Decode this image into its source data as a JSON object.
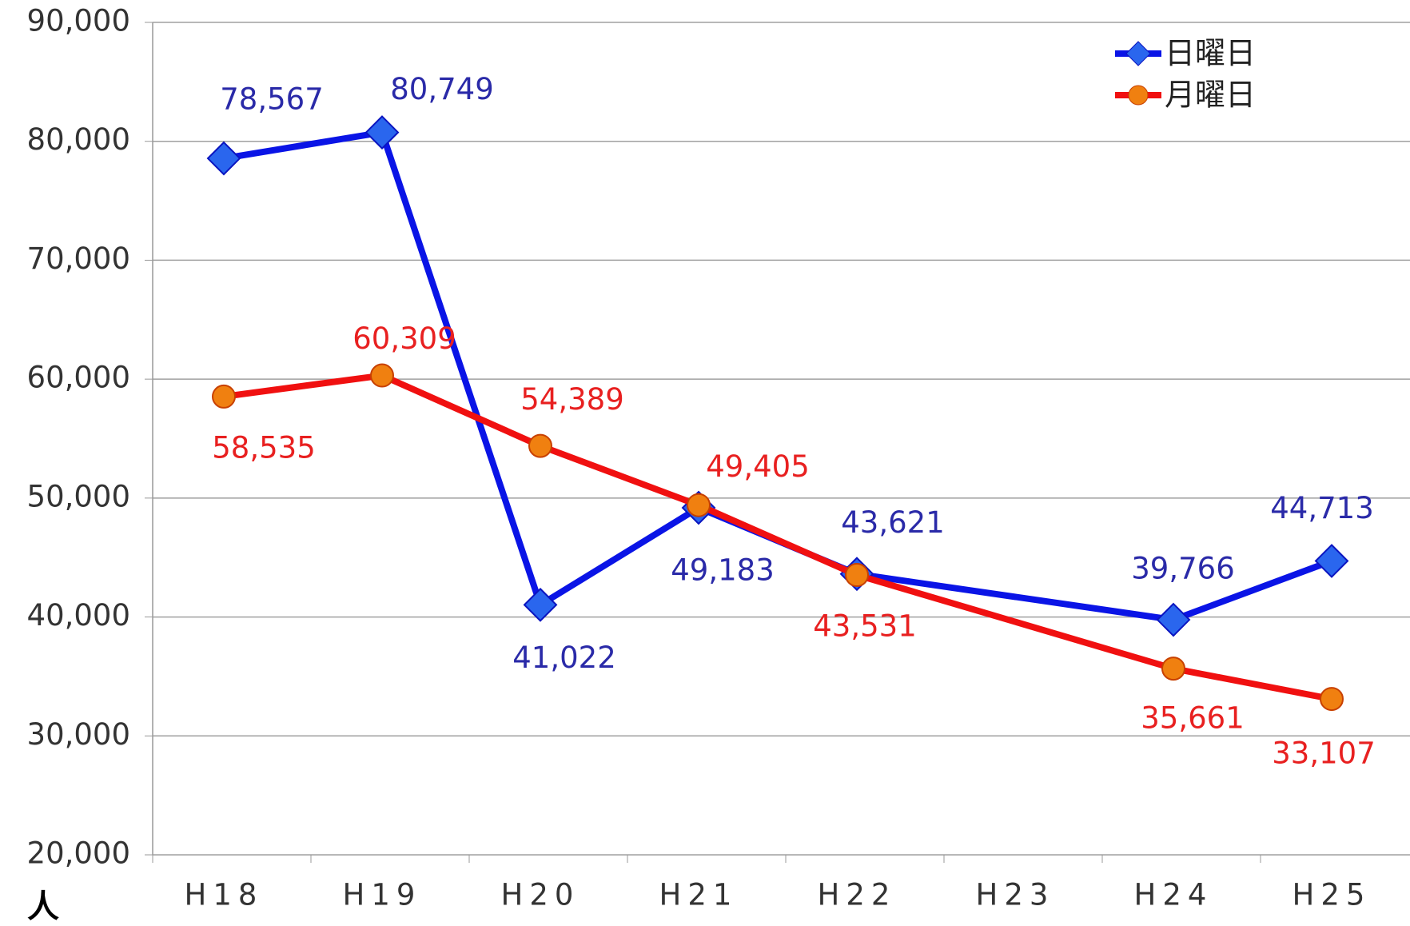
{
  "chart_data": {
    "type": "line",
    "categories": [
      "H18",
      "H19",
      "H20",
      "H21",
      "H22",
      "H23",
      "H24",
      "H25"
    ],
    "series": [
      {
        "name": "日曜日",
        "color": "#0a14e6",
        "label_color": "#2a2aa8",
        "marker": "diamond",
        "values": [
          78567,
          80749,
          41022,
          49183,
          43621,
          null,
          39766,
          44713
        ],
        "value_labels": [
          "78,567",
          "80,749",
          "41,022",
          "49,183",
          "43,621",
          null,
          "39,766",
          "44,713"
        ]
      },
      {
        "name": "月曜日",
        "color": "#f01010",
        "label_color": "#e82020",
        "marker": "circle",
        "values": [
          58535,
          60309,
          54389,
          49405,
          43531,
          null,
          35661,
          33107
        ],
        "value_labels": [
          "58,535",
          "60,309",
          "54,389",
          "49,405",
          "43,531",
          null,
          "35,661",
          "33,107"
        ]
      }
    ],
    "ylabel": "人",
    "ylim": [
      20000,
      90000
    ],
    "yticks": [
      {
        "value": 20000,
        "label": "20,000"
      },
      {
        "value": 30000,
        "label": "30,000"
      },
      {
        "value": 40000,
        "label": "40,000"
      },
      {
        "value": 50000,
        "label": "50,000"
      },
      {
        "value": 60000,
        "label": "60,000"
      },
      {
        "value": 70000,
        "label": "70,000"
      },
      {
        "value": 80000,
        "label": "80,000"
      },
      {
        "value": 90000,
        "label": "90,000"
      }
    ],
    "grid": true,
    "legend": "upper right",
    "connect_gaps": true
  }
}
